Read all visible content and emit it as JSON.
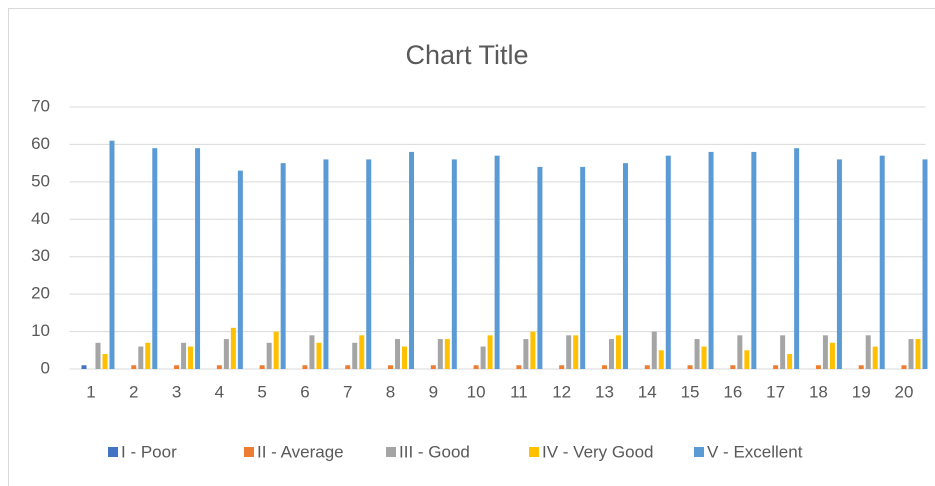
{
  "chart_data": {
    "type": "bar",
    "title": "Chart Title",
    "categories": [
      "1",
      "2",
      "3",
      "4",
      "5",
      "6",
      "7",
      "8",
      "9",
      "10",
      "11",
      "12",
      "13",
      "14",
      "15",
      "16",
      "17",
      "18",
      "19",
      "20"
    ],
    "series": [
      {
        "name": "I - Poor",
        "color": "#4472c4",
        "values": [
          1,
          0,
          0,
          0,
          0,
          0,
          0,
          0,
          0,
          0,
          0,
          0,
          0,
          0,
          0,
          0,
          0,
          0,
          0,
          0
        ]
      },
      {
        "name": "II - Average",
        "color": "#ed7d31",
        "values": [
          0,
          1,
          1,
          1,
          1,
          1,
          1,
          1,
          1,
          1,
          1,
          1,
          1,
          1,
          1,
          1,
          1,
          1,
          1,
          1
        ]
      },
      {
        "name": "III - Good",
        "color": "#a5a5a5",
        "values": [
          7,
          6,
          7,
          8,
          7,
          9,
          7,
          8,
          8,
          6,
          8,
          9,
          8,
          10,
          8,
          9,
          9,
          9,
          9,
          8
        ]
      },
      {
        "name": "IV - Very Good",
        "color": "#ffc000",
        "values": [
          4,
          7,
          6,
          11,
          10,
          7,
          9,
          6,
          8,
          9,
          10,
          9,
          9,
          5,
          6,
          5,
          4,
          7,
          6,
          8
        ]
      },
      {
        "name": "V - Excellent",
        "color": "#5b9bd5",
        "values": [
          61,
          59,
          59,
          53,
          55,
          56,
          56,
          58,
          56,
          57,
          54,
          54,
          55,
          57,
          58,
          58,
          59,
          56,
          57,
          56
        ]
      }
    ],
    "ylim": [
      0,
      70
    ],
    "yticks": [
      0,
      10,
      20,
      30,
      40,
      50,
      60,
      70
    ],
    "grid": true
  }
}
